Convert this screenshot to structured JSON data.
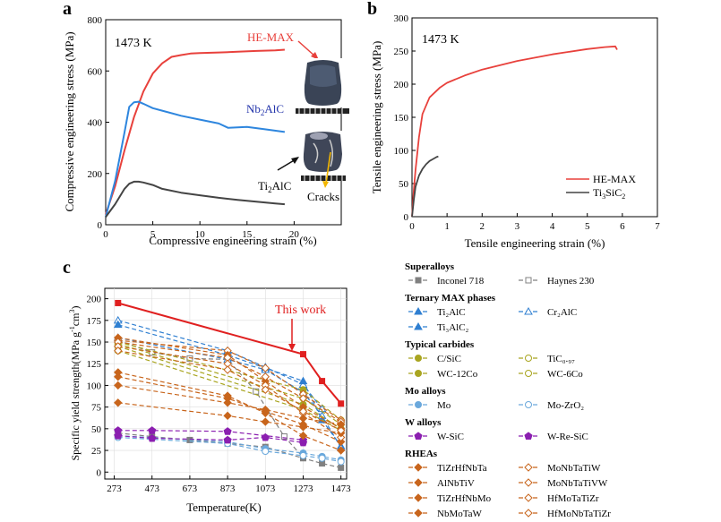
{
  "panels": {
    "a": {
      "letter": "a",
      "annotation": "1473 K",
      "xlabel": "Compressive engineering strain (%)",
      "ylabel": "Compressive engineering stress (MPa)",
      "xlim": [
        0,
        25
      ],
      "ylim": [
        0,
        800
      ],
      "xticks": [
        "0",
        "5",
        "10",
        "15",
        "20"
      ],
      "yticks": [
        "0",
        "200",
        "400",
        "600",
        "800"
      ],
      "label_hemax": "HE-MAX",
      "label_nb2alc": "Nb",
      "label_nb2alc_sub": "2",
      "label_nb2alc_tail": "AlC",
      "label_ti2alc": "Ti",
      "label_ti2alc_sub": "2",
      "label_ti2alc_tail": "AlC",
      "label_cracks": "Cracks"
    },
    "b": {
      "letter": "b",
      "annotation": "1473 K",
      "xlabel": "Tensile engineering strain (%)",
      "ylabel": "Tensile engineering stress (MPa)",
      "xlim": [
        0,
        7
      ],
      "ylim": [
        0,
        300
      ],
      "xticks": [
        "0",
        "1",
        "2",
        "3",
        "4",
        "5",
        "6",
        "7"
      ],
      "yticks": [
        "0",
        "50",
        "100",
        "150",
        "200",
        "250",
        "300"
      ],
      "legend_hemax": "HE-MAX",
      "legend_ti3sic2": "Ti",
      "legend_ti3sic2_sub": "3",
      "legend_ti3sic2_tail": "SiC",
      "legend_ti3sic2_sub2": "2"
    },
    "c": {
      "letter": "c",
      "annotation": "This work",
      "xlabel": "Temperature(K)",
      "ylabel": "Specific yield strength(MPa g",
      "ylabel_sup1": "-1",
      "ylabel_mid": "cm",
      "ylabel_sup2": "3",
      "ylabel_end": ")",
      "xticks": [
        "273",
        "473",
        "673",
        "873",
        "1073",
        "1273",
        "1473"
      ],
      "yticks": [
        "0",
        "25",
        "50",
        "75",
        "100",
        "125",
        "150",
        "175",
        "200"
      ]
    }
  },
  "legend": {
    "groups": [
      {
        "title": "Superalloys",
        "items": [
          "Inconel 718",
          "Haynes 230"
        ]
      },
      {
        "title": "Ternary MAX phases",
        "items": [
          "Ti₂AlC",
          "Cr₂AlC",
          "Ti₃AlC₂"
        ]
      },
      {
        "title": "Typical carbides",
        "items": [
          "C/SiC",
          "TiC₀.₉₇",
          "WC-12Co",
          "WC-6Co"
        ]
      },
      {
        "title": "Mo alloys",
        "items": [
          "Mo",
          "Mo-ZrO₂"
        ]
      },
      {
        "title": "W alloys",
        "items": [
          "W-SiC",
          "W-Re-SiC"
        ]
      },
      {
        "title": "RHEAs",
        "items": [
          "TiZrHfNbTa",
          "MoNbTaTiW",
          "AlNbTiV",
          "MoNbTaTiVW",
          "TiZrHfNbMo",
          "HfMoTaTiZr",
          "NbMoTaW",
          "HfMoNbTaTiZr",
          "NbMoTaWV"
        ]
      }
    ]
  },
  "colors": {
    "hemax": "#e8413c",
    "nb2alc": "#2e86de",
    "ti2alc": "#444444",
    "ti3sic2": "#444444",
    "this_work": "#e02020",
    "superalloy": "#808080",
    "max_phase": "#2f7fd1",
    "carbide": "#a9a520",
    "mo": "#6aa8dc",
    "w": "#8b1fb0",
    "rhea": "#c8651c",
    "nb2alc_label": "#2233aa"
  },
  "chart_data": [
    {
      "panel": "a",
      "type": "line",
      "xlabel": "Compressive engineering strain (%)",
      "ylabel": "Compressive engineering stress (MPa)",
      "xlim": [
        0,
        25
      ],
      "ylim": [
        0,
        800
      ],
      "series": [
        {
          "name": "HE-MAX",
          "x": [
            0,
            1,
            2,
            3,
            4,
            5,
            6,
            7,
            8,
            9,
            10,
            12,
            14,
            16,
            18,
            19
          ],
          "y": [
            40,
            150,
            290,
            420,
            520,
            590,
            630,
            655,
            662,
            668,
            670,
            672,
            675,
            678,
            680,
            683
          ]
        },
        {
          "name": "Nb2AlC",
          "x": [
            0,
            1,
            2,
            2.5,
            3,
            3.5,
            4,
            5,
            6,
            8,
            10,
            12,
            13,
            14,
            15,
            17,
            19
          ],
          "y": [
            30,
            170,
            360,
            460,
            478,
            480,
            472,
            455,
            445,
            425,
            410,
            395,
            378,
            380,
            382,
            372,
            362
          ]
        },
        {
          "name": "Ti2AlC",
          "x": [
            0,
            1,
            2,
            2.5,
            3,
            3.5,
            4,
            5,
            6,
            8,
            10,
            12,
            14,
            16,
            18,
            19
          ],
          "y": [
            30,
            80,
            140,
            160,
            168,
            168,
            165,
            155,
            140,
            125,
            115,
            105,
            97,
            90,
            83,
            80
          ]
        }
      ]
    },
    {
      "panel": "b",
      "type": "line",
      "xlabel": "Tensile engineering strain (%)",
      "ylabel": "Tensile engineering stress (MPa)",
      "xlim": [
        0,
        7
      ],
      "ylim": [
        0,
        300
      ],
      "series": [
        {
          "name": "HE-MAX",
          "x": [
            0,
            0.05,
            0.1,
            0.2,
            0.3,
            0.5,
            0.8,
            1.0,
            1.5,
            2,
            3,
            4,
            5,
            5.5,
            5.8,
            5.85
          ],
          "y": [
            0,
            40,
            70,
            120,
            155,
            180,
            195,
            202,
            213,
            222,
            235,
            245,
            253,
            256,
            257,
            252
          ]
        },
        {
          "name": "Ti3SiC2",
          "x": [
            0,
            0.05,
            0.1,
            0.2,
            0.3,
            0.4,
            0.5,
            0.6,
            0.7,
            0.75
          ],
          "y": [
            0,
            25,
            45,
            62,
            72,
            79,
            84,
            87,
            90,
            91
          ]
        }
      ]
    },
    {
      "panel": "c",
      "type": "line",
      "xlabel": "Temperature(K)",
      "ylabel": "Specific yield strength(MPa g-1cm3)",
      "xlim": [
        273,
        1473
      ],
      "ylim": [
        0,
        200
      ],
      "series": [
        {
          "name": "This work",
          "group": "this_work",
          "x": [
            293,
            1273,
            1373,
            1473
          ],
          "y": [
            195,
            136,
            105,
            79
          ]
        },
        {
          "name": "Inconel 718",
          "group": "superalloy",
          "x": [
            293,
            473,
            673,
            873,
            1023,
            1173,
            1273
          ],
          "y": [
            152,
            138,
            131,
            130,
            93,
            41,
            17
          ]
        },
        {
          "name": "Haynes 230",
          "group": "superalloy",
          "x": [
            293,
            473,
            673,
            873,
            1073,
            1273,
            1373,
            1473
          ],
          "y": [
            45,
            41,
            37,
            33,
            29,
            16,
            10,
            5
          ]
        },
        {
          "name": "Ti2AlC",
          "group": "max_phase",
          "x": [
            293,
            873,
            1073,
            1273,
            1373
          ],
          "y": [
            175,
            140,
            121,
            101,
            73
          ]
        },
        {
          "name": "Cr2AlC",
          "group": "max_phase",
          "x": [
            293,
            873,
            1073,
            1273,
            1373,
            1473
          ],
          "y": [
            170,
            135,
            120,
            105,
            60,
            30
          ]
        },
        {
          "name": "Ti3AlC2",
          "group": "max_phase",
          "x": [
            293,
            873,
            1073,
            1273,
            1373,
            1473
          ],
          "y": [
            155,
            130,
            118,
            92,
            65,
            28
          ]
        },
        {
          "name": "C/SiC",
          "group": "carbide",
          "x": [
            293,
            1273,
            1473
          ],
          "y": [
            150,
            95,
            60
          ]
        },
        {
          "name": "TiC0.97",
          "group": "carbide",
          "x": [
            293,
            1273,
            1473
          ],
          "y": [
            148,
            85,
            55
          ]
        },
        {
          "name": "WC-12Co",
          "group": "carbide",
          "x": [
            293,
            1273,
            1473
          ],
          "y": [
            145,
            78,
            50
          ]
        },
        {
          "name": "WC-6Co",
          "group": "carbide",
          "x": [
            293,
            1273,
            1473
          ],
          "y": [
            140,
            72,
            48
          ]
        },
        {
          "name": "Mo",
          "group": "mo",
          "x": [
            293,
            873,
            1073,
            1273,
            1373,
            1473
          ],
          "y": [
            42,
            35,
            27,
            22,
            18,
            14
          ]
        },
        {
          "name": "Mo-ZrO2",
          "group": "mo",
          "x": [
            293,
            873,
            1073,
            1273,
            1373,
            1473
          ],
          "y": [
            40,
            33,
            24,
            19,
            16,
            12
          ]
        },
        {
          "name": "W-SiC",
          "group": "w",
          "x": [
            293,
            473,
            873,
            1073,
            1273
          ],
          "y": [
            42,
            39,
            37,
            40,
            34
          ]
        },
        {
          "name": "W-Re-SiC",
          "group": "w",
          "x": [
            293,
            473,
            873,
            1273
          ],
          "y": [
            48,
            48,
            47,
            37
          ]
        },
        {
          "name": "TiZrHfNbTa",
          "group": "rhea",
          "x": [
            293,
            873,
            1073,
            1273,
            1473
          ],
          "y": [
            115,
            88,
            68,
            42,
            25
          ]
        },
        {
          "name": "MoNbTaTiW",
          "group": "rhea",
          "x": [
            293,
            873,
            1073,
            1273,
            1473
          ],
          "y": [
            152,
            140,
            120,
            90,
            60
          ]
        },
        {
          "name": "AlNbTiV",
          "group": "rhea",
          "x": [
            293,
            873,
            1073,
            1273,
            1473
          ],
          "y": [
            155,
            135,
            105,
            75,
            50
          ]
        },
        {
          "name": "MoNbTaTiVW",
          "group": "rhea",
          "x": [
            293,
            873,
            1073,
            1273,
            1473
          ],
          "y": [
            150,
            132,
            110,
            85,
            58
          ]
        },
        {
          "name": "TiZrHfNbMo",
          "group": "rhea",
          "x": [
            293,
            873,
            1073,
            1273,
            1473
          ],
          "y": [
            110,
            85,
            70,
            55,
            35
          ]
        },
        {
          "name": "HfMoTaTiZr",
          "group": "rhea",
          "x": [
            293,
            873,
            1073,
            1273,
            1473
          ],
          "y": [
            145,
            125,
            100,
            68,
            40
          ]
        },
        {
          "name": "NbMoTaW",
          "group": "rhea",
          "x": [
            293,
            873,
            1073,
            1273,
            1473
          ],
          "y": [
            80,
            65,
            58,
            52,
            45
          ]
        },
        {
          "name": "HfMoNbTaTiZr",
          "group": "rhea",
          "x": [
            293,
            873,
            1073,
            1273,
            1473
          ],
          "y": [
            140,
            118,
            95,
            70,
            48
          ]
        },
        {
          "name": "NbMoTaWV",
          "group": "rhea",
          "x": [
            293,
            873,
            1073,
            1273,
            1473
          ],
          "y": [
            100,
            80,
            72,
            62,
            55
          ]
        }
      ]
    }
  ]
}
